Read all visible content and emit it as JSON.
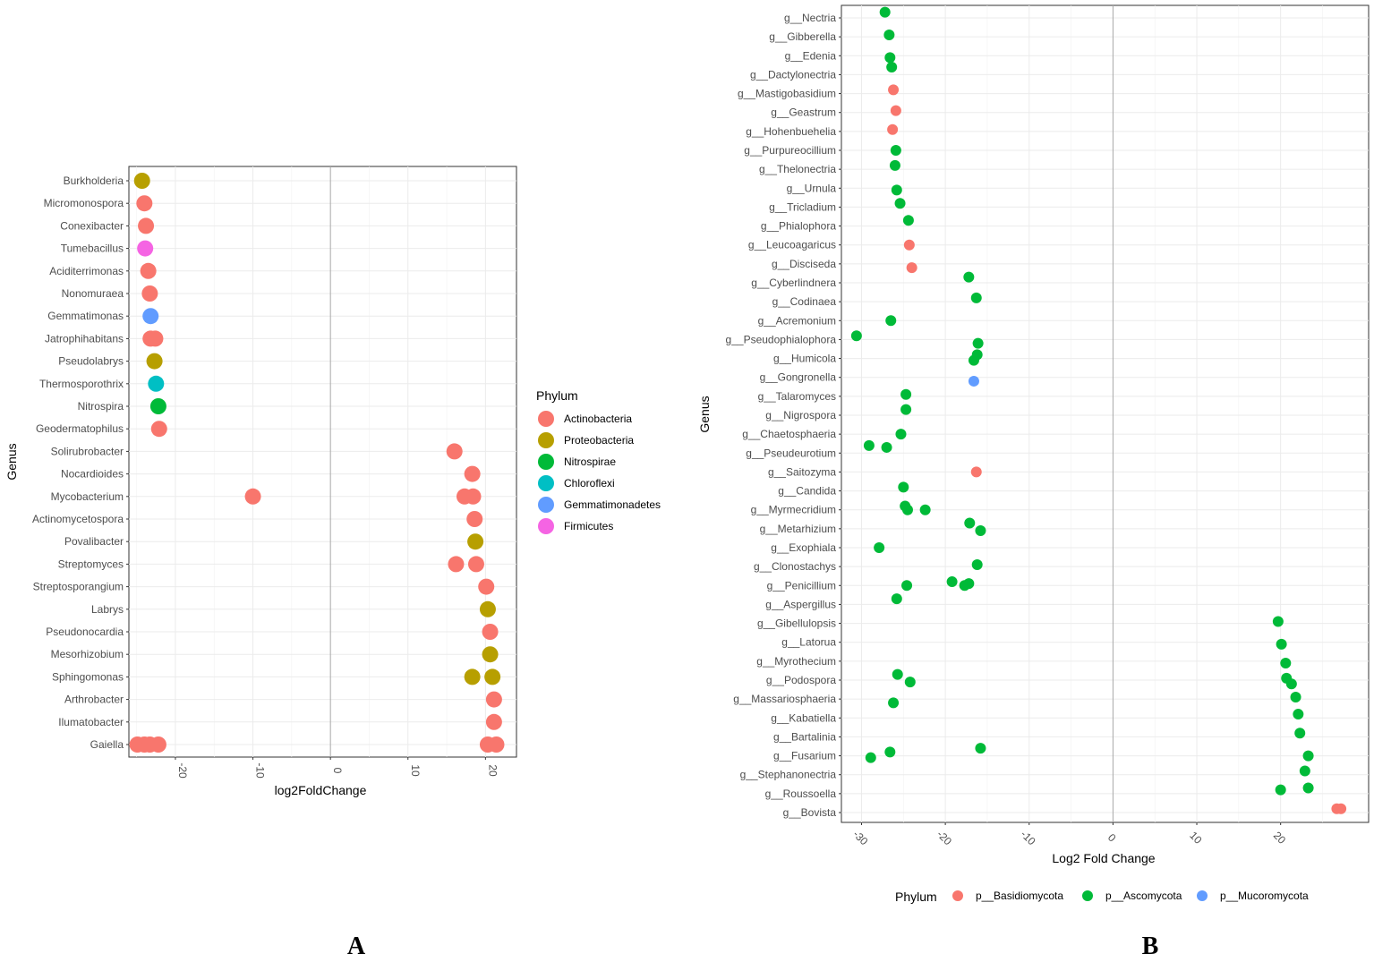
{
  "chart_data": [
    {
      "panel": "A",
      "type": "scatter",
      "xlabel": "log2FoldChange",
      "ylabel": "Genus",
      "xlim": [
        -26,
        24
      ],
      "xticks": [
        -20,
        -10,
        0,
        10,
        20
      ],
      "categories": [
        "Burkholderia",
        "Micromonospora",
        "Conexibacter",
        "Tumebacillus",
        "Aciditerrimonas",
        "Nonomuraea",
        "Gemmatimonas",
        "Jatrophihabitans",
        "Pseudolabrys",
        "Thermosporothrix",
        "Nitrospira",
        "Geodermatophilus",
        "Solirubrobacter",
        "Nocardioides",
        "Mycobacterium",
        "Actinomycetospora",
        "Povalibacter",
        "Streptomyces",
        "Streptosporangium",
        "Labrys",
        "Pseudonocardia",
        "Mesorhizobium",
        "Sphingomonas",
        "Arthrobacter",
        "Ilumatobacter",
        "Gaiella"
      ],
      "legend_title": "Phylum",
      "legend": [
        {
          "name": "Actinobacteria",
          "color": "#F8766D"
        },
        {
          "name": "Proteobacteria",
          "color": "#B79F00"
        },
        {
          "name": "Nitrospirae",
          "color": "#00BA38"
        },
        {
          "name": "Chloroflexi",
          "color": "#00BFC4"
        },
        {
          "name": "Gemmatimonadetes",
          "color": "#619CFF"
        },
        {
          "name": "Firmicutes",
          "color": "#F564E3"
        }
      ],
      "points": [
        {
          "genus": "Burkholderia",
          "x": -24.3,
          "phylum": 1
        },
        {
          "genus": "Micromonospora",
          "x": -24.0,
          "phylum": 0
        },
        {
          "genus": "Conexibacter",
          "x": -23.8,
          "phylum": 0
        },
        {
          "genus": "Tumebacillus",
          "x": -23.9,
          "phylum": 5
        },
        {
          "genus": "Aciditerrimonas",
          "x": -23.5,
          "phylum": 0
        },
        {
          "genus": "Nonomuraea",
          "x": -23.3,
          "phylum": 0
        },
        {
          "genus": "Gemmatimonas",
          "x": -23.2,
          "phylum": 4
        },
        {
          "genus": "Jatrophihabitans",
          "x": -23.2,
          "phylum": 0
        },
        {
          "genus": "Jatrophihabitans",
          "x": -22.6,
          "phylum": 0
        },
        {
          "genus": "Pseudolabrys",
          "x": -22.7,
          "phylum": 1
        },
        {
          "genus": "Thermosporothrix",
          "x": -22.5,
          "phylum": 3
        },
        {
          "genus": "Nitrospira",
          "x": -22.2,
          "phylum": 2
        },
        {
          "genus": "Geodermatophilus",
          "x": -22.1,
          "phylum": 0
        },
        {
          "genus": "Solirubrobacter",
          "x": 16.0,
          "phylum": 0
        },
        {
          "genus": "Nocardioides",
          "x": 18.3,
          "phylum": 0
        },
        {
          "genus": "Mycobacterium",
          "x": -10.0,
          "phylum": 0
        },
        {
          "genus": "Mycobacterium",
          "x": 17.3,
          "phylum": 0
        },
        {
          "genus": "Mycobacterium",
          "x": 18.4,
          "phylum": 0
        },
        {
          "genus": "Actinomycetospora",
          "x": 18.6,
          "phylum": 0
        },
        {
          "genus": "Povalibacter",
          "x": 18.7,
          "phylum": 1
        },
        {
          "genus": "Streptomyces",
          "x": 16.2,
          "phylum": 0
        },
        {
          "genus": "Streptomyces",
          "x": 18.8,
          "phylum": 0
        },
        {
          "genus": "Streptosporangium",
          "x": 20.1,
          "phylum": 0
        },
        {
          "genus": "Labrys",
          "x": 20.3,
          "phylum": 1
        },
        {
          "genus": "Pseudonocardia",
          "x": 20.6,
          "phylum": 0
        },
        {
          "genus": "Mesorhizobium",
          "x": 20.6,
          "phylum": 1
        },
        {
          "genus": "Sphingomonas",
          "x": 18.3,
          "phylum": 1
        },
        {
          "genus": "Sphingomonas",
          "x": 20.9,
          "phylum": 1
        },
        {
          "genus": "Arthrobacter",
          "x": 21.1,
          "phylum": 0
        },
        {
          "genus": "Ilumatobacter",
          "x": 21.1,
          "phylum": 0
        },
        {
          "genus": "Gaiella",
          "x": -24.9,
          "phylum": 0
        },
        {
          "genus": "Gaiella",
          "x": -24.0,
          "phylum": 0
        },
        {
          "genus": "Gaiella",
          "x": -23.3,
          "phylum": 0
        },
        {
          "genus": "Gaiella",
          "x": -22.2,
          "phylum": 0
        },
        {
          "genus": "Gaiella",
          "x": 20.3,
          "phylum": 0
        },
        {
          "genus": "Gaiella",
          "x": 21.4,
          "phylum": 0
        }
      ]
    },
    {
      "panel": "B",
      "type": "scatter",
      "xlabel": "Log2 Fold Change",
      "ylabel": "Genus",
      "xlim": [
        -32.4,
        30.5
      ],
      "xticks": [
        -30,
        -20,
        -10,
        0,
        10,
        20
      ],
      "categories": [
        "g__Nectria",
        "g__Gibberella",
        "g__Edenia",
        "g__Dactylonectria",
        "g__Mastigobasidium",
        "g__Geastrum",
        "g__Hohenbuehelia",
        "g__Purpureocillium",
        "g__Thelonectria",
        "g__Urnula",
        "g__Tricladium",
        "g__Phialophora",
        "g__Leucoagaricus",
        "g__Disciseda",
        "g__Cyberlindnera",
        "g__Codinaea",
        "g__Acremonium",
        "g__Pseudophialophora",
        "g__Humicola",
        "g__Gongronella",
        "g__Talaromyces",
        "g__Nigrospora",
        "g__Chaetosphaeria",
        "g__Pseudeurotium",
        "g__Saitozyma",
        "g__Candida",
        "g__Myrmecridium",
        "g__Metarhizium",
        "g__Exophiala",
        "g__Clonostachys",
        "g__Penicillium",
        "g__Aspergillus",
        "g__Gibellulopsis",
        "g__Latorua",
        "g__Myrothecium",
        "g__Podospora",
        "g__Massariosphaeria",
        "g__Kabatiella",
        "g__Bartalinia",
        "g__Fusarium",
        "g__Stephanonectria",
        "g__Roussoella",
        "g__Bovista"
      ],
      "legend_title": "Phylum",
      "legend": [
        {
          "name": "p__Basidiomycota",
          "color": "#F8766D"
        },
        {
          "name": "p__Ascomycota",
          "color": "#00BA38"
        },
        {
          "name": "p__Mucoromycota",
          "color": "#619CFF"
        }
      ],
      "points": [
        {
          "genus": "g__Nectria",
          "x": -27.2,
          "phylum": 1,
          "dy": -0.3
        },
        {
          "genus": "g__Gibberella",
          "x": -26.7,
          "phylum": 1,
          "dy": -0.1
        },
        {
          "genus": "g__Edenia",
          "x": -26.6,
          "phylum": 1,
          "dy": 0.1
        },
        {
          "genus": "g__Dactylonectria",
          "x": -26.4,
          "phylum": 1,
          "dy": -0.4
        },
        {
          "genus": "g__Mastigobasidium",
          "x": -26.2,
          "phylum": 0,
          "dy": -0.2
        },
        {
          "genus": "g__Geastrum",
          "x": -25.9,
          "phylum": 0,
          "dy": -0.1
        },
        {
          "genus": "g__Hohenbuehelia",
          "x": -26.3,
          "phylum": 0,
          "dy": -0.1
        },
        {
          "genus": "g__Purpureocillium",
          "x": -25.9,
          "phylum": 1,
          "dy": 0
        },
        {
          "genus": "g__Thelonectria",
          "x": -26.0,
          "phylum": 1,
          "dy": -0.2
        },
        {
          "genus": "g__Urnula",
          "x": -25.8,
          "phylum": 1,
          "dy": 0.1
        },
        {
          "genus": "g__Tricladium",
          "x": -25.4,
          "phylum": 1,
          "dy": -0.2
        },
        {
          "genus": "g__Phialophora",
          "x": -24.4,
          "phylum": 1,
          "dy": -0.3
        },
        {
          "genus": "g__Leucoagaricus",
          "x": -24.3,
          "phylum": 0,
          "dy": 0
        },
        {
          "genus": "g__Disciseda",
          "x": -24.0,
          "phylum": 0,
          "dy": 0.2
        },
        {
          "genus": "g__Cyberlindnera",
          "x": -17.2,
          "phylum": 1,
          "dy": -0.3
        },
        {
          "genus": "g__Codinaea",
          "x": -16.3,
          "phylum": 1,
          "dy": -0.2
        },
        {
          "genus": "g__Acremonium",
          "x": -26.5,
          "phylum": 1,
          "dy": 0
        },
        {
          "genus": "g__Pseudophialophora",
          "x": -30.6,
          "phylum": 1,
          "dy": -0.2
        },
        {
          "genus": "g__Pseudophialophora",
          "x": -16.1,
          "phylum": 1,
          "dy": 0.2
        },
        {
          "genus": "g__Humicola",
          "x": -16.2,
          "phylum": 1,
          "dy": -0.2
        },
        {
          "genus": "g__Humicola",
          "x": -16.6,
          "phylum": 1,
          "dy": 0.1
        },
        {
          "genus": "g__Gongronella",
          "x": -16.6,
          "phylum": 2,
          "dy": 0.2
        },
        {
          "genus": "g__Talaromyces",
          "x": -24.7,
          "phylum": 1,
          "dy": -0.1
        },
        {
          "genus": "g__Nigrospora",
          "x": -24.7,
          "phylum": 1,
          "dy": -0.3
        },
        {
          "genus": "g__Chaetosphaeria",
          "x": -25.3,
          "phylum": 1,
          "dy": 0
        },
        {
          "genus": "g__Pseudeurotium",
          "x": -29.1,
          "phylum": 1,
          "dy": -0.4
        },
        {
          "genus": "g__Pseudeurotium",
          "x": -27.0,
          "phylum": 1,
          "dy": -0.3
        },
        {
          "genus": "g__Saitozyma",
          "x": -16.3,
          "phylum": 0,
          "dy": 0
        },
        {
          "genus": "g__Candida",
          "x": -25.0,
          "phylum": 1,
          "dy": -0.2
        },
        {
          "genus": "g__Myrmecridium",
          "x": -24.8,
          "phylum": 1,
          "dy": -0.2
        },
        {
          "genus": "g__Myrmecridium",
          "x": -24.5,
          "phylum": 1,
          "dy": 0
        },
        {
          "genus": "g__Myrmecridium",
          "x": -22.4,
          "phylum": 1,
          "dy": 0
        },
        {
          "genus": "g__Metarhizium",
          "x": -17.1,
          "phylum": 1,
          "dy": -0.3
        },
        {
          "genus": "g__Metarhizium",
          "x": -15.8,
          "phylum": 1,
          "dy": 0.1
        },
        {
          "genus": "g__Exophiala",
          "x": -27.9,
          "phylum": 1,
          "dy": 0
        },
        {
          "genus": "g__Clonostachys",
          "x": -16.2,
          "phylum": 1,
          "dy": -0.1
        },
        {
          "genus": "g__Penicillium",
          "x": -19.2,
          "phylum": 1,
          "dy": -0.2
        },
        {
          "genus": "g__Penicillium",
          "x": -17.7,
          "phylum": 1,
          "dy": 0
        },
        {
          "genus": "g__Penicillium",
          "x": -17.2,
          "phylum": 1,
          "dy": -0.1
        },
        {
          "genus": "g__Penicillium",
          "x": -24.6,
          "phylum": 1,
          "dy": 0
        },
        {
          "genus": "g__Aspergillus",
          "x": -25.8,
          "phylum": 1,
          "dy": -0.3
        },
        {
          "genus": "g__Gibellulopsis",
          "x": 19.7,
          "phylum": 1,
          "dy": -0.1
        },
        {
          "genus": "g__Latorua",
          "x": 20.1,
          "phylum": 1,
          "dy": 0.1
        },
        {
          "genus": "g__Myrothecium",
          "x": 20.6,
          "phylum": 1,
          "dy": 0.1
        },
        {
          "genus": "g__Podospora",
          "x": -25.7,
          "phylum": 1,
          "dy": -0.3
        },
        {
          "genus": "g__Podospora",
          "x": -24.2,
          "phylum": 1,
          "dy": 0.1
        },
        {
          "genus": "g__Podospora",
          "x": 20.7,
          "phylum": 1,
          "dy": -0.1
        },
        {
          "genus": "g__Podospora",
          "x": 21.3,
          "phylum": 1,
          "dy": 0.2
        },
        {
          "genus": "g__Massariosphaeria",
          "x": -26.2,
          "phylum": 1,
          "dy": 0.2
        },
        {
          "genus": "g__Massariosphaeria",
          "x": 21.8,
          "phylum": 1,
          "dy": -0.1
        },
        {
          "genus": "g__Kabatiella",
          "x": 22.1,
          "phylum": 1,
          "dy": -0.2
        },
        {
          "genus": "g__Bartalinia",
          "x": 22.3,
          "phylum": 1,
          "dy": -0.2
        },
        {
          "genus": "g__Fusarium",
          "x": -26.6,
          "phylum": 1,
          "dy": -0.2
        },
        {
          "genus": "g__Fusarium",
          "x": -28.9,
          "phylum": 1,
          "dy": 0.1
        },
        {
          "genus": "g__Fusarium",
          "x": -15.8,
          "phylum": 1,
          "dy": -0.4
        },
        {
          "genus": "g__Fusarium",
          "x": 23.3,
          "phylum": 1,
          "dy": 0
        },
        {
          "genus": "g__Stephanonectria",
          "x": 22.9,
          "phylum": 1,
          "dy": -0.2
        },
        {
          "genus": "g__Roussoella",
          "x": 23.3,
          "phylum": 1,
          "dy": -0.3
        },
        {
          "genus": "g__Roussoella",
          "x": 20.0,
          "phylum": 1,
          "dy": -0.2
        },
        {
          "genus": "g__Bovista",
          "x": 26.7,
          "phylum": 0,
          "dy": -0.2
        },
        {
          "genus": "g__Bovista",
          "x": 27.2,
          "phylum": 0,
          "dy": -0.2
        }
      ]
    }
  ],
  "labels": {
    "panel_a": "A",
    "panel_b": "B"
  }
}
